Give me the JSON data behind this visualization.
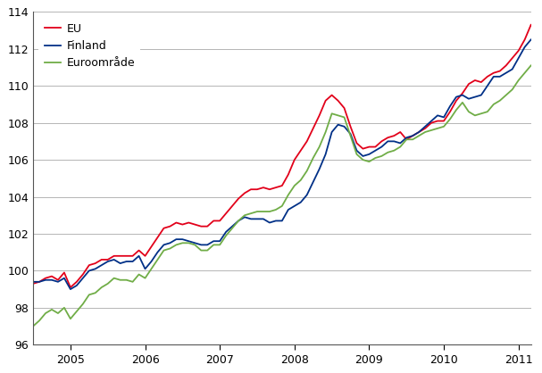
{
  "title": "",
  "ylabel": "",
  "xlabel": "",
  "ylim": [
    96,
    114
  ],
  "yticks": [
    96,
    98,
    100,
    102,
    104,
    106,
    108,
    110,
    112,
    114
  ],
  "background_color": "#ffffff",
  "plot_bg_color": "#ffffff",
  "grid_color": "#aaaaaa",
  "line_color_EU": "#e2001a",
  "line_color_Finland": "#003087",
  "line_color_Euro": "#70ad47",
  "legend_labels": [
    "EU",
    "Finland",
    "Euroområde"
  ],
  "start_year": 2004,
  "start_month": 7,
  "EU": [
    99.3,
    99.4,
    99.6,
    99.7,
    99.5,
    99.9,
    99.1,
    99.4,
    99.8,
    100.3,
    100.4,
    100.6,
    100.6,
    100.8,
    100.8,
    100.8,
    100.8,
    101.1,
    100.8,
    101.3,
    101.8,
    102.3,
    102.4,
    102.6,
    102.5,
    102.6,
    102.5,
    102.4,
    102.4,
    102.7,
    102.7,
    103.1,
    103.5,
    103.9,
    104.2,
    104.4,
    104.4,
    104.5,
    104.4,
    104.5,
    104.6,
    105.2,
    106.0,
    106.5,
    107.0,
    107.7,
    108.4,
    109.2,
    109.5,
    109.2,
    108.8,
    107.8,
    106.9,
    106.6,
    106.7,
    106.7,
    107.0,
    107.2,
    107.3,
    107.5,
    107.1,
    107.3,
    107.5,
    107.7,
    108.0,
    108.1,
    108.1,
    108.6,
    109.2,
    109.6,
    110.1,
    110.3,
    110.2,
    110.5,
    110.7,
    110.8,
    111.1,
    111.5,
    111.9,
    112.5,
    113.3
  ],
  "Finland": [
    99.4,
    99.4,
    99.5,
    99.5,
    99.4,
    99.6,
    99.0,
    99.2,
    99.6,
    100.0,
    100.1,
    100.3,
    100.5,
    100.6,
    100.4,
    100.5,
    100.5,
    100.8,
    100.1,
    100.5,
    101.0,
    101.4,
    101.5,
    101.7,
    101.7,
    101.6,
    101.5,
    101.4,
    101.4,
    101.6,
    101.6,
    102.1,
    102.4,
    102.7,
    102.9,
    102.8,
    102.8,
    102.8,
    102.6,
    102.7,
    102.7,
    103.3,
    103.5,
    103.7,
    104.1,
    104.8,
    105.5,
    106.3,
    107.5,
    107.9,
    107.8,
    107.4,
    106.5,
    106.2,
    106.3,
    106.5,
    106.7,
    107.0,
    107.0,
    106.9,
    107.2,
    107.3,
    107.5,
    107.8,
    108.1,
    108.4,
    108.3,
    108.9,
    109.4,
    109.5,
    109.3,
    109.4,
    109.5,
    110.0,
    110.5,
    110.5,
    110.7,
    110.9,
    111.5,
    112.1,
    112.5
  ],
  "Euro": [
    97.0,
    97.3,
    97.7,
    97.9,
    97.7,
    98.0,
    97.4,
    97.8,
    98.2,
    98.7,
    98.8,
    99.1,
    99.3,
    99.6,
    99.5,
    99.5,
    99.4,
    99.8,
    99.6,
    100.1,
    100.6,
    101.1,
    101.2,
    101.4,
    101.5,
    101.5,
    101.4,
    101.1,
    101.1,
    101.4,
    101.4,
    101.9,
    102.3,
    102.7,
    103.0,
    103.1,
    103.2,
    103.2,
    103.2,
    103.3,
    103.5,
    104.1,
    104.6,
    104.9,
    105.4,
    106.1,
    106.7,
    107.5,
    108.5,
    108.4,
    108.3,
    107.3,
    106.3,
    106.0,
    105.9,
    106.1,
    106.2,
    106.4,
    106.5,
    106.7,
    107.1,
    107.1,
    107.3,
    107.5,
    107.6,
    107.7,
    107.8,
    108.2,
    108.7,
    109.1,
    108.6,
    108.4,
    108.5,
    108.6,
    109.0,
    109.2,
    109.5,
    109.8,
    110.3,
    110.7,
    111.1
  ],
  "xtick_year_labels": [
    "2005",
    "2006",
    "2007",
    "2008",
    "2009",
    "2010",
    "2011"
  ]
}
